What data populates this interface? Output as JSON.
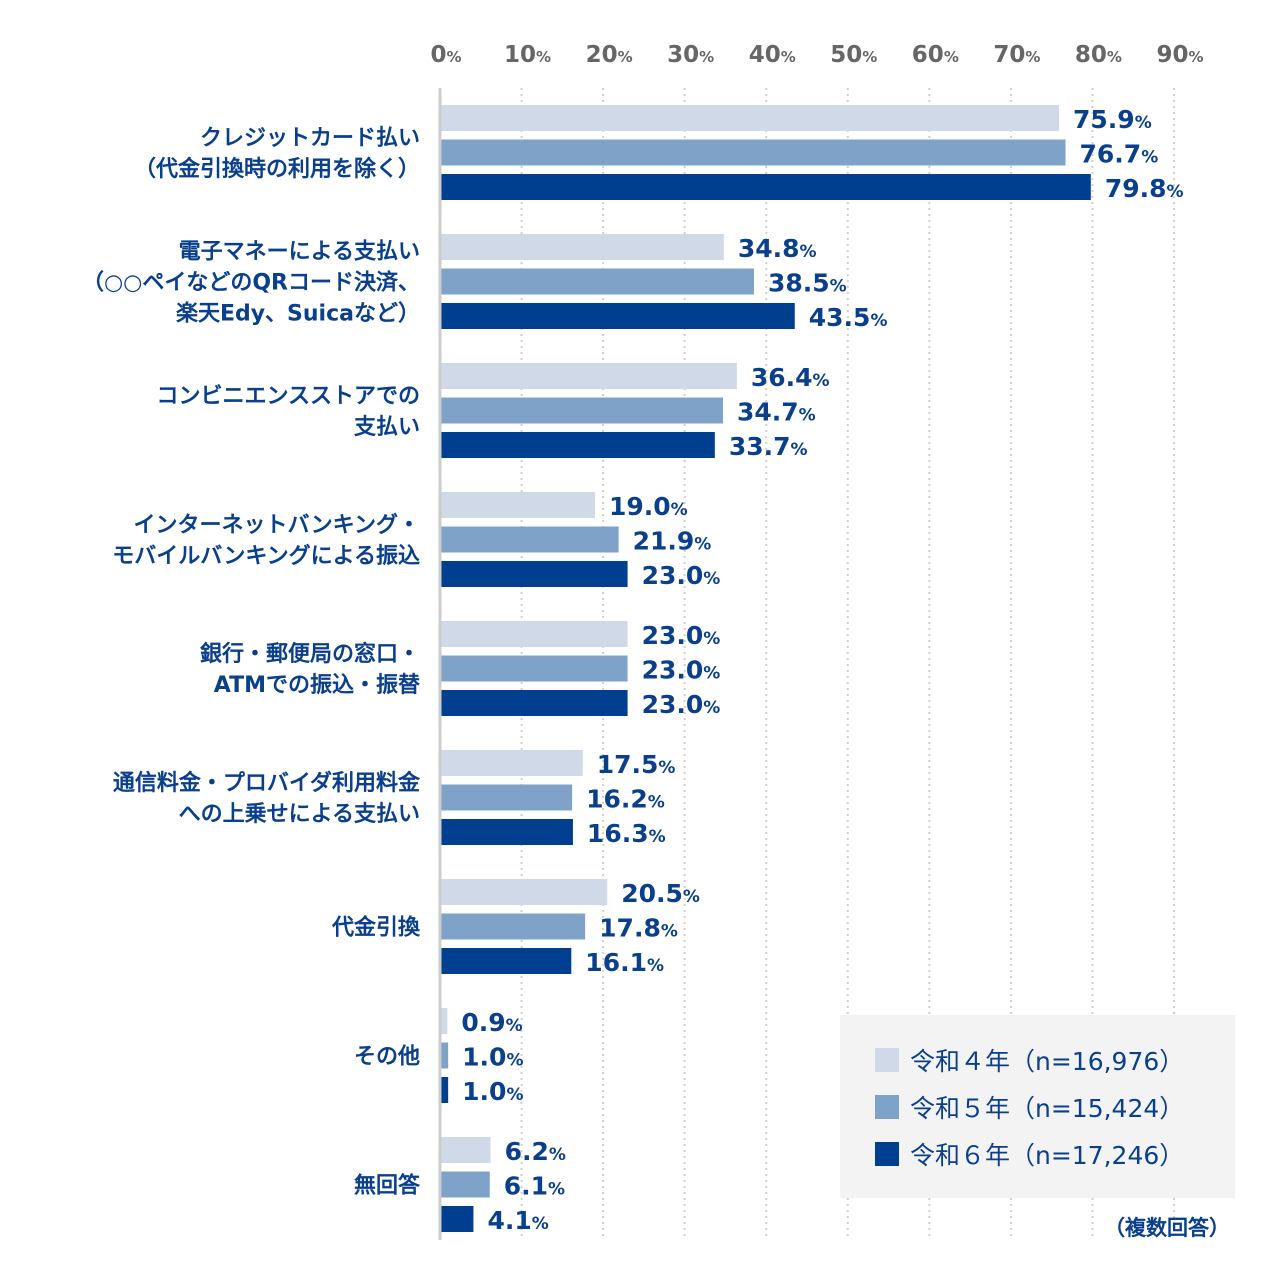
{
  "chart_data": {
    "type": "bar",
    "orientation": "horizontal",
    "categories": [
      [
        "クレジットカード払い",
        "（代金引換時の利用を除く）"
      ],
      [
        "電子マネーによる支払い",
        "（○○ペイなどのQRコード決済、",
        "楽天Edy、Suicaなど）"
      ],
      [
        "コンビニエンスストアでの",
        "支払い"
      ],
      [
        "インターネットバンキング・",
        "モバイルバンキングによる振込"
      ],
      [
        "銀行・郵便局の窓口・",
        "ATMでの振込・振替"
      ],
      [
        "通信料金・プロバイダ利用料金",
        "への上乗せによる支払い"
      ],
      [
        "代金引換"
      ],
      [
        "その他"
      ],
      [
        "無回答"
      ]
    ],
    "series": [
      {
        "name": "令和４年（n=16,976）",
        "color": "#cfd9e8",
        "values": [
          75.9,
          34.8,
          36.4,
          19.0,
          23.0,
          17.5,
          20.5,
          0.9,
          6.2
        ]
      },
      {
        "name": "令和５年（n=15,424）",
        "color": "#7fa3c8",
        "values": [
          76.7,
          38.5,
          34.7,
          21.9,
          23.0,
          16.2,
          17.8,
          1.0,
          6.1
        ]
      },
      {
        "name": "令和６年（n=17,246）",
        "color": "#003f8f",
        "values": [
          79.8,
          43.5,
          33.7,
          23.0,
          23.0,
          16.3,
          16.1,
          1.0,
          4.1
        ]
      }
    ],
    "xticks": [
      "0",
      "10",
      "20",
      "30",
      "40",
      "50",
      "60",
      "70",
      "80",
      "90"
    ],
    "tick_unit": "%",
    "value_unit": "%",
    "xlim": [
      0,
      90
    ],
    "grid": true,
    "legend_position": "bottom-right",
    "note": "（複数回答）",
    "text_color": "#0a3f8c"
  }
}
